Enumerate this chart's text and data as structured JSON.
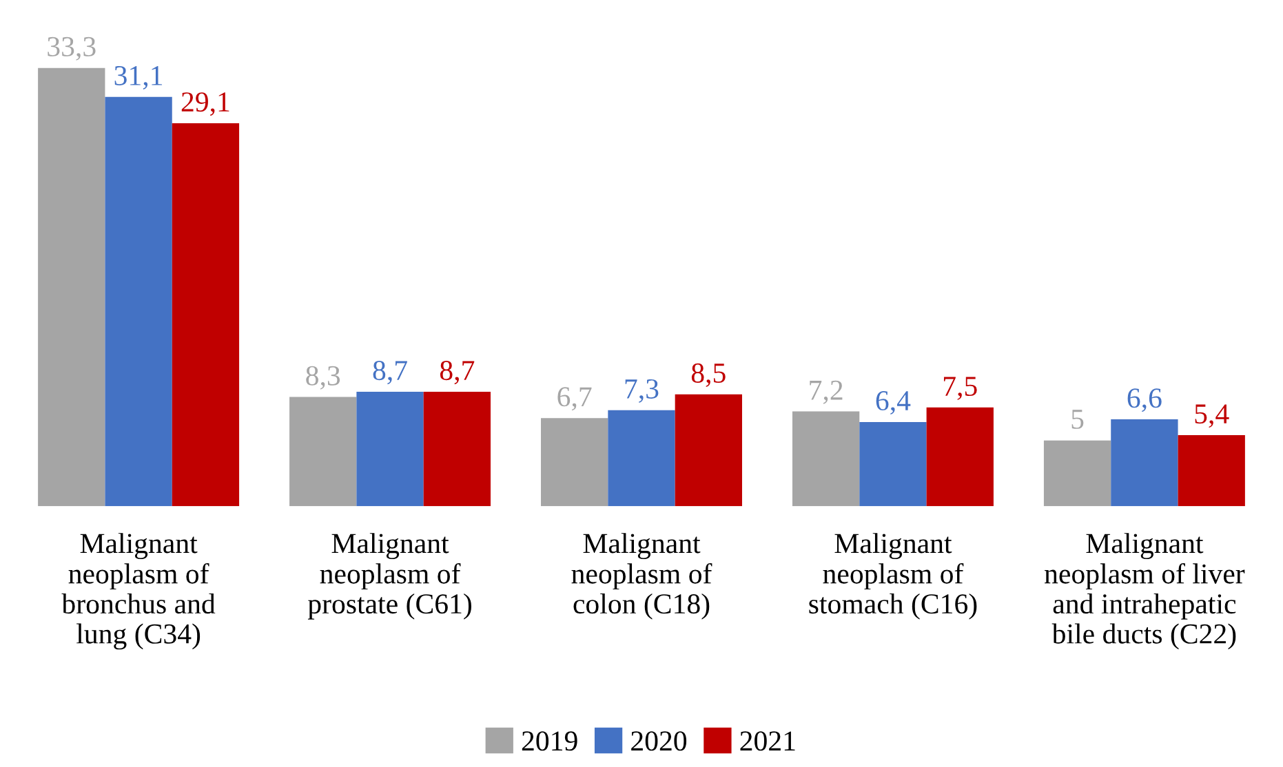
{
  "chart_data": {
    "type": "bar",
    "categories": [
      "Malignant\nneoplasm of\nbronchus and\nlung (C34)",
      "Malignant\nneoplasm of\nprostate (C61)",
      "Malignant\nneoplasm of\ncolon (C18)",
      "Malignant\nneoplasm of\nstomach (C16)",
      "Malignant\nneoplasm of liver\nand intrahepatic\nbile ducts (C22)"
    ],
    "series": [
      {
        "name": "2019",
        "color": "#a5a5a5",
        "values": [
          33.3,
          8.3,
          6.7,
          7.2,
          5
        ],
        "value_labels": [
          "33,3",
          "8,3",
          "6,7",
          "7,2",
          "5"
        ]
      },
      {
        "name": "2020",
        "color": "#4472c4",
        "values": [
          31.1,
          8.7,
          7.3,
          6.4,
          6.6
        ],
        "value_labels": [
          "31,1",
          "8,7",
          "7,3",
          "6,4",
          "6,6"
        ]
      },
      {
        "name": "2021",
        "color": "#c00000",
        "values": [
          29.1,
          8.7,
          8.5,
          7.5,
          5.4
        ],
        "value_labels": [
          "29,1",
          "8,7",
          "8,5",
          "7,5",
          "5,4"
        ]
      }
    ],
    "legend": "bottom",
    "grid": false
  }
}
